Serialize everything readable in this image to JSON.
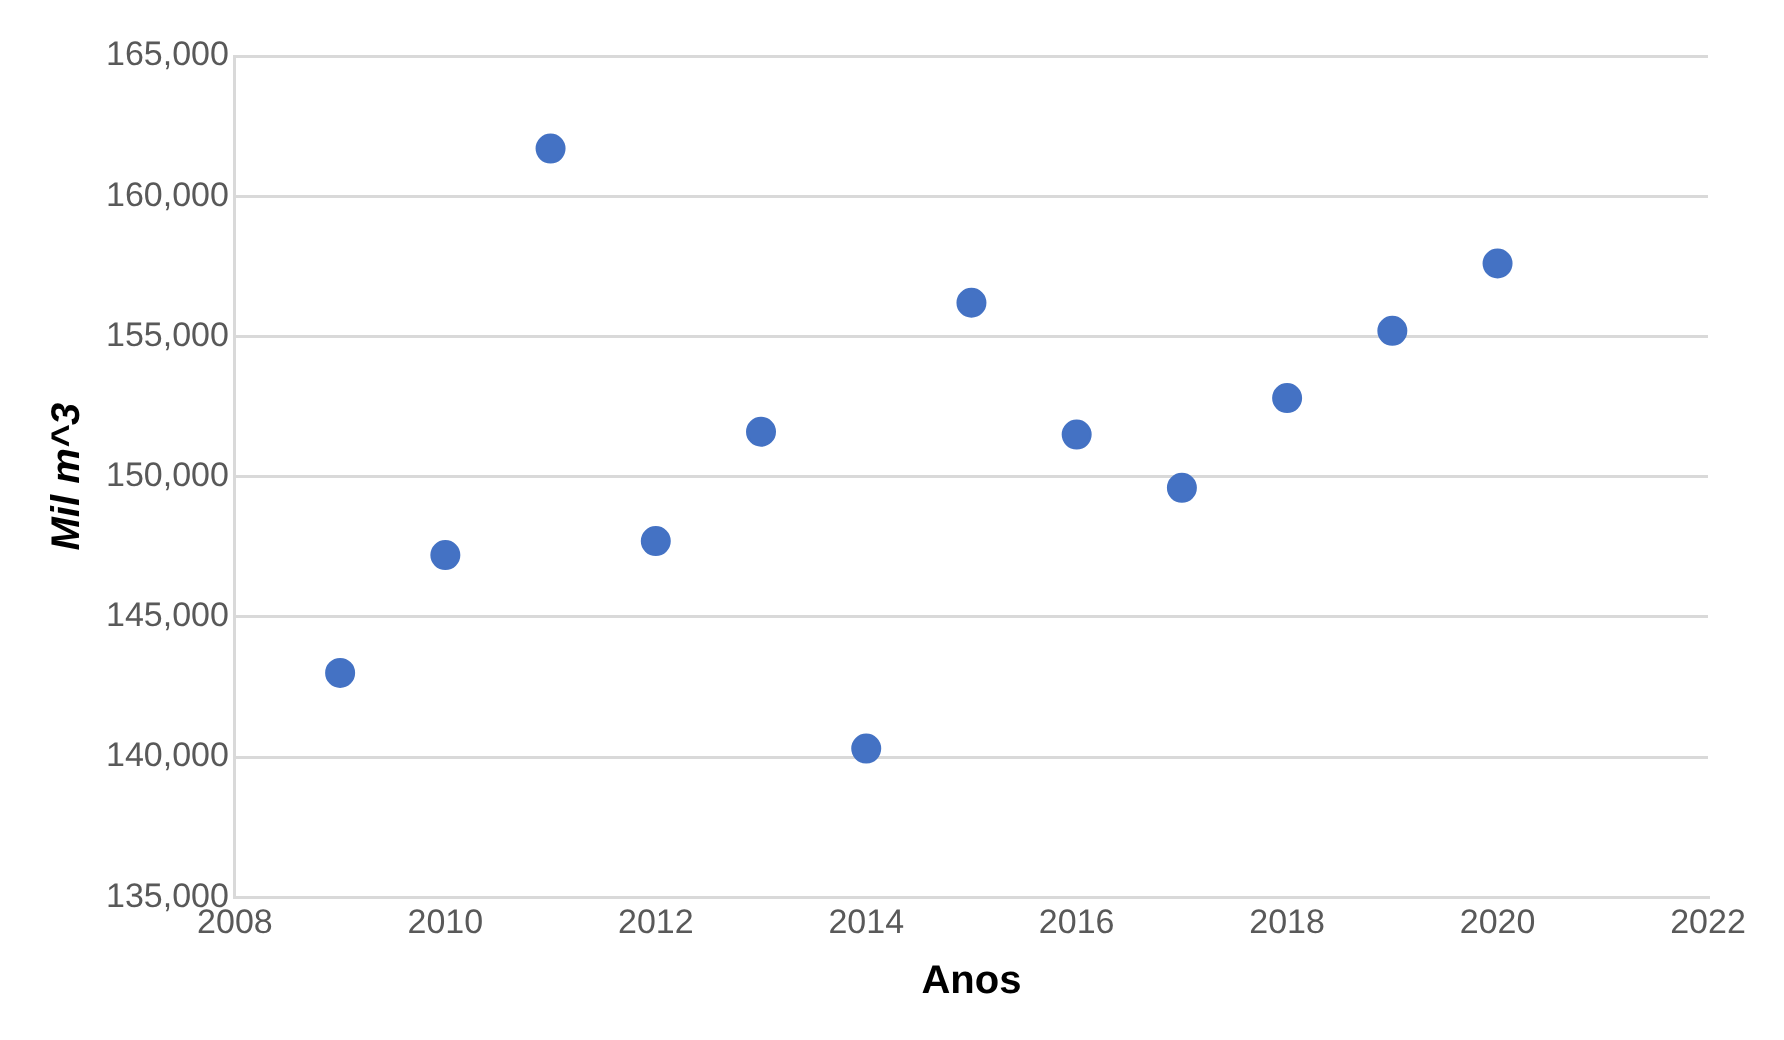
{
  "chart_data": {
    "type": "scatter",
    "xlabel": "Anos",
    "ylabel": "Mil m^3",
    "x": [
      2009,
      2010,
      2011,
      2012,
      2013,
      2014,
      2015,
      2016,
      2017,
      2018,
      2019,
      2020
    ],
    "series": [
      {
        "color": "#4472c4",
        "values": [
          143000,
          147200,
          161700,
          147700,
          151600,
          140300,
          156200,
          151500,
          149600,
          152800,
          155200,
          157600
        ]
      }
    ],
    "xlim": [
      2008,
      2022
    ],
    "xticks": [
      2008,
      2010,
      2012,
      2014,
      2016,
      2018,
      2020,
      2022
    ],
    "ylim": [
      135000,
      165000
    ],
    "yticks": [
      {
        "value": 135000,
        "label": "135,000"
      },
      {
        "value": 140000,
        "label": "140,000"
      },
      {
        "value": 145000,
        "label": "145,000"
      },
      {
        "value": 150000,
        "label": "150,000"
      },
      {
        "value": 155000,
        "label": "155,000"
      },
      {
        "value": 160000,
        "label": "160,000"
      },
      {
        "value": 165000,
        "label": "165,000"
      }
    ],
    "grid": "y",
    "legend": false,
    "marker": "circle"
  }
}
